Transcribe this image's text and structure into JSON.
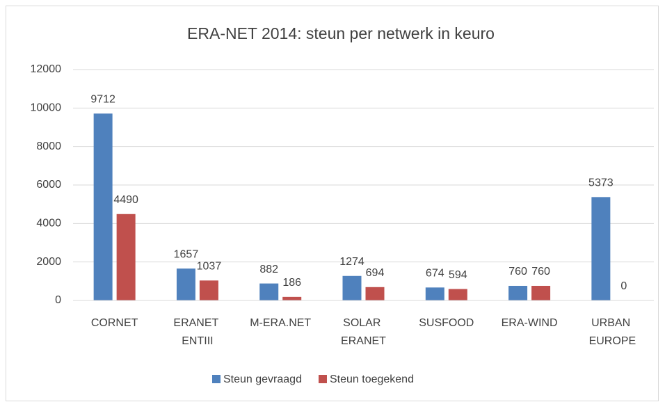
{
  "chart_data": {
    "type": "bar",
    "title": "ERA-NET 2014: steun per netwerk in keuro",
    "categories": [
      "CORNET",
      "ERANET ENTIII",
      "M-ERA.NET",
      "SOLAR ERANET",
      "SUSFOOD",
      "ERA-WIND",
      "URBAN EUROPE"
    ],
    "series": [
      {
        "name": "Steun gevraagd",
        "color": "#4f81bd",
        "values": [
          9712,
          1657,
          882,
          1274,
          674,
          760,
          5373
        ]
      },
      {
        "name": "Steun toegekend",
        "color": "#c0504d",
        "values": [
          4490,
          1037,
          186,
          694,
          594,
          760,
          0
        ]
      }
    ],
    "ylim": [
      0,
      12000
    ],
    "yticks": [
      0,
      2000,
      4000,
      6000,
      8000,
      10000,
      12000
    ],
    "grid": true,
    "legend": "bottom"
  }
}
